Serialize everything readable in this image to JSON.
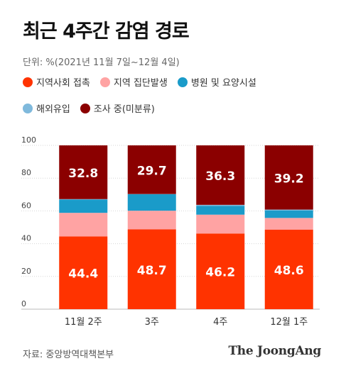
{
  "title": "최근 4주간 감염 경로",
  "unit_note": "단위: %(2021년 11월 7일~12월 4일)",
  "source": "자료: 중앙방역대책본부",
  "brand": "The JoongAng",
  "chart_data": {
    "type": "bar",
    "stacked": true,
    "categories": [
      "11월 2주",
      "3주",
      "4주",
      "12월 1주"
    ],
    "ylim": [
      0,
      100
    ],
    "yticks": [
      0,
      20,
      40,
      60,
      80,
      100
    ],
    "grid": true,
    "legend_position": "top",
    "series": [
      {
        "name": "지역사회 접촉",
        "color": "#ff3300",
        "values": [
          44.4,
          48.7,
          46.2,
          48.6
        ],
        "labels": [
          "44.4",
          "48.7",
          "46.2",
          "48.6"
        ]
      },
      {
        "name": "지역 집단발생",
        "color": "#ffa3a3",
        "values": [
          14.4,
          11.4,
          11.5,
          7.1
        ],
        "labels": []
      },
      {
        "name": "병원 및 요양시설",
        "color": "#1a9bc9",
        "values": [
          8.1,
          10.1,
          5.3,
          4.6
        ],
        "labels": []
      },
      {
        "name": "해외유입",
        "color": "#7fb9dc",
        "values": [
          0.3,
          0.1,
          0.7,
          0.5
        ],
        "labels": []
      },
      {
        "name": "조사 중(미분류)",
        "color": "#8b0000",
        "values": [
          32.8,
          29.7,
          36.3,
          39.2
        ],
        "labels": [
          "32.8",
          "29.7",
          "36.3",
          "39.2"
        ]
      }
    ]
  }
}
